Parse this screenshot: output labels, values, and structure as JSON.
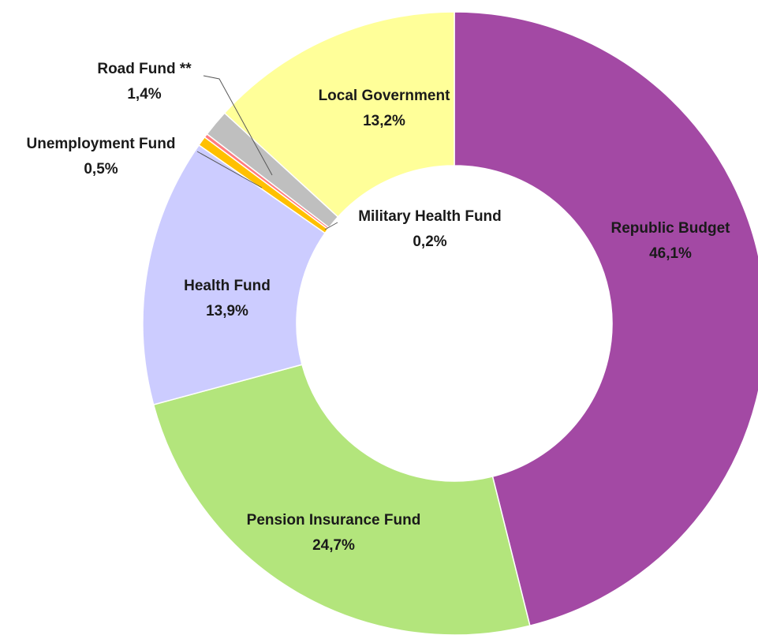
{
  "chart_data": {
    "type": "donut",
    "categories": [
      "Republic Budget",
      "Pension Insurance Fund",
      "Health Fund",
      "Unemployment Fund",
      "Military Health Fund",
      "Road Fund **",
      "Local Government"
    ],
    "values": [
      46.1,
      24.7,
      13.9,
      0.5,
      0.2,
      1.4,
      13.2
    ],
    "value_labels": [
      "46,1%",
      "24,7%",
      "13,9%",
      "0,5%",
      "0,2%",
      "1,4%",
      "13,2%"
    ],
    "colors": [
      "#a349a4",
      "#b3e57c",
      "#ccccff",
      "#ffc000",
      "#ff7c80",
      "#bfbfbf",
      "#ffff99"
    ]
  }
}
